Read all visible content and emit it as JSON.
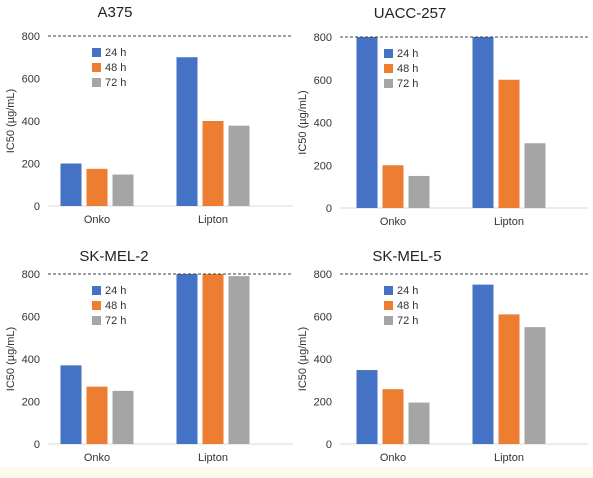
{
  "chart_data": [
    {
      "type": "bar",
      "title": "A375",
      "ylabel": "IC50  (µg/mL)",
      "categories": [
        "Onko",
        "Lipton"
      ],
      "ylim": [
        0,
        800
      ],
      "yticks": [
        0,
        200,
        400,
        600,
        800
      ],
      "reference_line": 800,
      "legend_position": "top-left",
      "series": [
        {
          "name": "24 h",
          "values": [
            200,
            700
          ]
        },
        {
          "name": "48 h",
          "values": [
            175,
            400
          ]
        },
        {
          "name": "72 h",
          "values": [
            148,
            378
          ]
        }
      ]
    },
    {
      "type": "bar",
      "title": "UACC-257",
      "ylabel": "IC50  (µg/mL)",
      "categories": [
        "Onko",
        "Lipton"
      ],
      "ylim": [
        0,
        800
      ],
      "yticks": [
        0,
        200,
        400,
        600,
        800
      ],
      "reference_line": 800,
      "legend_position": "top-left",
      "series": [
        {
          "name": "24 h",
          "values": [
            800,
            800
          ]
        },
        {
          "name": "48 h",
          "values": [
            200,
            600
          ]
        },
        {
          "name": "72 h",
          "values": [
            150,
            303
          ]
        }
      ]
    },
    {
      "type": "bar",
      "title": "SK-MEL-2",
      "ylabel": "IC50  (µg/mL)",
      "categories": [
        "Onko",
        "Lipton"
      ],
      "ylim": [
        0,
        800
      ],
      "yticks": [
        0,
        200,
        400,
        600,
        800
      ],
      "reference_line": 800,
      "legend_position": "top-left",
      "series": [
        {
          "name": "24 h",
          "values": [
            370,
            800
          ]
        },
        {
          "name": "48 h",
          "values": [
            270,
            800
          ]
        },
        {
          "name": "72 h",
          "values": [
            250,
            790
          ]
        }
      ]
    },
    {
      "type": "bar",
      "title": "SK-MEL-5",
      "ylabel": "IC50  (µg/mL)",
      "categories": [
        "Onko",
        "Lipton"
      ],
      "ylim": [
        0,
        800
      ],
      "yticks": [
        0,
        200,
        400,
        600,
        800
      ],
      "reference_line": 800,
      "legend_position": "top-left",
      "series": [
        {
          "name": "24 h",
          "values": [
            348,
            750
          ]
        },
        {
          "name": "48 h",
          "values": [
            258,
            610
          ]
        },
        {
          "name": "72 h",
          "values": [
            195,
            550
          ]
        }
      ]
    }
  ],
  "colors": {
    "series": [
      "#4472c4",
      "#ed7d31",
      "#a5a5a5"
    ],
    "axis": "#d9d9d9",
    "reference_line": "#404040",
    "text": "#333333"
  }
}
